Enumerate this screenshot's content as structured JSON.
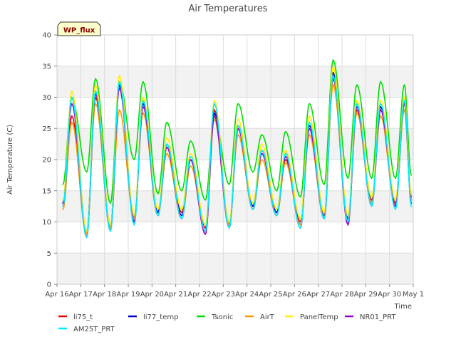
{
  "chart_data": {
    "type": "line",
    "title": "Air Temperatures",
    "xlabel": "Time",
    "ylabel": "Air Temperature (C)",
    "ylim": [
      0,
      40
    ],
    "yticks": [
      0,
      5,
      10,
      15,
      20,
      25,
      30,
      35,
      40
    ],
    "xlim": [
      "2024-04-16",
      "2024-05-01"
    ],
    "xticks": [
      {
        "date": "2024-04-16",
        "label": "Apr 16"
      },
      {
        "date": "2024-04-17",
        "label": "Apr 17"
      },
      {
        "date": "2024-04-18",
        "label": "Apr 18"
      },
      {
        "date": "2024-04-19",
        "label": "Apr 19"
      },
      {
        "date": "2024-04-20",
        "label": "Apr 20"
      },
      {
        "date": "2024-04-21",
        "label": "Apr 21"
      },
      {
        "date": "2024-04-22",
        "label": "Apr 22"
      },
      {
        "date": "2024-04-23",
        "label": "Apr 23"
      },
      {
        "date": "2024-04-24",
        "label": "Apr 24"
      },
      {
        "date": "2024-04-25",
        "label": "Apr 25"
      },
      {
        "date": "2024-04-26",
        "label": "Apr 26"
      },
      {
        "date": "2024-04-27",
        "label": "Apr 27"
      },
      {
        "date": "2024-04-28",
        "label": "Apr 28"
      },
      {
        "date": "2024-04-29",
        "label": "Apr 29"
      },
      {
        "date": "2024-04-30",
        "label": "Apr 30"
      },
      {
        "date": "2024-05-01",
        "label": "May 1"
      }
    ],
    "grid": true,
    "legend": "bottom",
    "annotation": "WP_flux",
    "x": [
      "2024-04-16 06:00",
      "2024-04-16 15:00",
      "2024-04-17 06:00",
      "2024-04-17 15:00",
      "2024-04-18 06:00",
      "2024-04-18 15:00",
      "2024-04-19 06:00",
      "2024-04-19 15:00",
      "2024-04-20 06:00",
      "2024-04-20 15:00",
      "2024-04-21 06:00",
      "2024-04-21 15:00",
      "2024-04-22 06:00",
      "2024-04-22 15:00",
      "2024-04-23 06:00",
      "2024-04-23 15:00",
      "2024-04-24 06:00",
      "2024-04-24 15:00",
      "2024-04-25 06:00",
      "2024-04-25 15:00",
      "2024-04-26 06:00",
      "2024-04-26 15:00",
      "2024-04-27 06:00",
      "2024-04-27 15:00",
      "2024-04-28 06:00",
      "2024-04-28 15:00",
      "2024-04-29 06:00",
      "2024-04-29 15:00",
      "2024-04-30 06:00",
      "2024-04-30 15:00",
      "2024-04-30 22:00"
    ],
    "series": [
      {
        "name": "li75_t",
        "color": "#ee0000",
        "values": [
          13.0,
          27.0,
          8.0,
          30.0,
          9.0,
          32.0,
          10.5,
          29.0,
          11.5,
          22.0,
          11.5,
          20.0,
          9.0,
          28.0,
          9.5,
          25.0,
          12.5,
          21.0,
          11.5,
          20.0,
          10.0,
          25.0,
          11.0,
          33.0,
          10.5,
          28.0,
          13.5,
          28.0,
          13.0,
          29.0,
          14.0
        ]
      },
      {
        "name": "li77_temp",
        "color": "#0000cc",
        "values": [
          13.0,
          30.0,
          8.5,
          31.0,
          9.5,
          32.0,
          10.5,
          29.0,
          11.5,
          22.5,
          11.0,
          20.0,
          8.5,
          27.5,
          9.5,
          25.5,
          12.5,
          21.5,
          11.5,
          21.0,
          9.5,
          25.5,
          10.5,
          34.0,
          10.0,
          29.0,
          13.0,
          28.5,
          12.5,
          29.5,
          13.5
        ]
      },
      {
        "name": "Tsonic",
        "color": "#00dd00",
        "values": [
          16.0,
          30.0,
          18.0,
          33.0,
          13.0,
          32.5,
          20.0,
          32.5,
          14.5,
          26.0,
          15.0,
          23.0,
          13.5,
          27.0,
          16.0,
          29.0,
          18.0,
          24.0,
          15.0,
          24.5,
          14.0,
          29.0,
          16.0,
          36.0,
          17.0,
          32.0,
          17.0,
          32.5,
          17.0,
          32.0,
          17.5
        ]
      },
      {
        "name": "AirT",
        "color": "#ff9900",
        "values": [
          12.0,
          26.0,
          8.0,
          29.0,
          9.0,
          28.0,
          10.5,
          27.5,
          11.0,
          21.0,
          10.5,
          19.0,
          8.5,
          26.5,
          9.5,
          24.0,
          12.0,
          20.0,
          11.0,
          19.5,
          9.5,
          24.0,
          10.5,
          32.0,
          10.0,
          27.5,
          13.0,
          27.0,
          12.5,
          28.0,
          13.5
        ]
      },
      {
        "name": "PanelTemp",
        "color": "#ffee00",
        "values": [
          13.5,
          31.0,
          8.5,
          32.0,
          9.5,
          33.5,
          11.0,
          30.0,
          12.0,
          23.5,
          12.0,
          21.0,
          9.5,
          29.5,
          10.0,
          26.5,
          13.0,
          22.5,
          12.0,
          21.5,
          10.5,
          27.0,
          11.5,
          35.0,
          11.0,
          29.5,
          14.0,
          29.5,
          13.5,
          30.0,
          14.5
        ]
      },
      {
        "name": "NR01_PRT",
        "color": "#9900cc",
        "values": [
          12.5,
          29.0,
          7.5,
          30.5,
          8.5,
          31.5,
          10.0,
          28.5,
          11.0,
          22.0,
          10.5,
          20.0,
          8.0,
          27.0,
          9.0,
          25.0,
          12.0,
          21.0,
          11.0,
          20.5,
          9.0,
          25.0,
          10.5,
          33.5,
          9.5,
          28.5,
          12.5,
          28.0,
          12.5,
          29.0,
          13.0
        ]
      },
      {
        "name": "AM25T_PRT",
        "color": "#00eeff",
        "values": [
          12.5,
          30.0,
          7.5,
          31.0,
          8.5,
          32.5,
          9.5,
          29.5,
          11.0,
          22.5,
          10.5,
          20.5,
          8.5,
          29.0,
          9.0,
          25.5,
          12.0,
          21.5,
          11.0,
          21.0,
          9.0,
          26.0,
          10.5,
          33.5,
          10.0,
          29.0,
          12.5,
          29.0,
          12.0,
          29.5,
          12.5
        ]
      }
    ]
  }
}
